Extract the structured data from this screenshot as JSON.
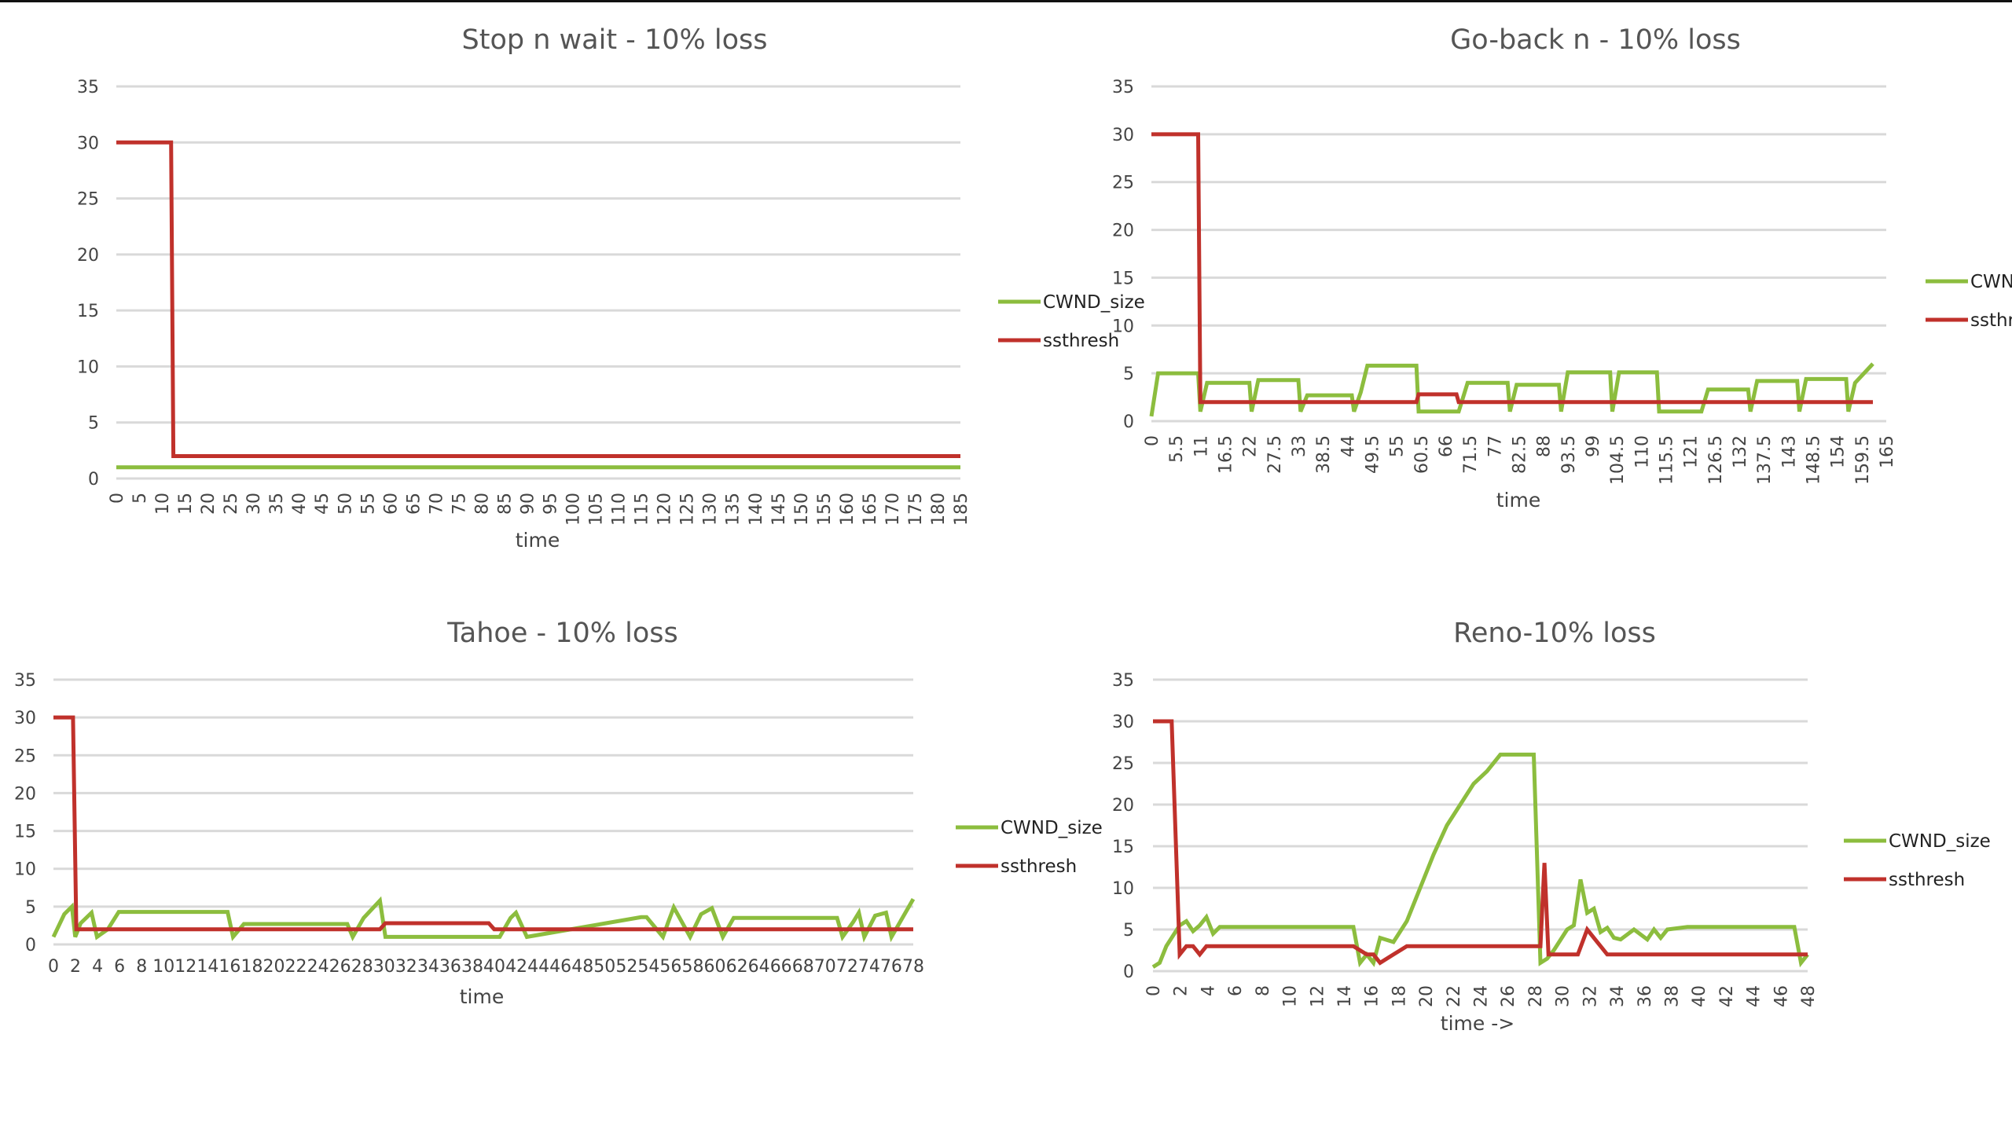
{
  "colors": {
    "cwnd": "#8cbd3e",
    "ssthresh": "#c0312b",
    "grid": "#d9d9d9",
    "text": "#444444"
  },
  "chart_data": [
    {
      "type": "line",
      "title": "Stop n wait - 10% loss",
      "xlabel": "time",
      "ylabel": "",
      "ylim": [
        0,
        35
      ],
      "yticks": [
        0,
        5,
        10,
        15,
        20,
        25,
        30,
        35
      ],
      "xlim": [
        0,
        185
      ],
      "xticks": [
        "0",
        "5",
        "10",
        "15",
        "20",
        "25",
        "30",
        "35",
        "40",
        "45",
        "50",
        "55",
        "60",
        "65",
        "70",
        "75",
        "80",
        "85",
        "90",
        "95",
        "100",
        "105",
        "110",
        "115",
        "120",
        "125",
        "130",
        "135",
        "140",
        "145",
        "150",
        "155",
        "160",
        "165",
        "170",
        "175",
        "180",
        "185"
      ],
      "grid": "horizontal",
      "legend": "right",
      "series": [
        {
          "name": "CWND_size",
          "x": [
            0,
            185
          ],
          "values": [
            1,
            1
          ]
        },
        {
          "name": "ssthresh",
          "x": [
            0,
            12,
            12.5,
            185
          ],
          "values": [
            30,
            30,
            2,
            2
          ]
        }
      ]
    },
    {
      "type": "line",
      "title": "Go-back n - 10% loss",
      "xlabel": "time",
      "ylabel": "",
      "ylim": [
        0,
        35
      ],
      "yticks": [
        0,
        5,
        10,
        15,
        20,
        25,
        30,
        35
      ],
      "xlim": [
        0,
        165
      ],
      "xticks": [
        "0",
        "5.5",
        "11",
        "16.5",
        "22",
        "27.5",
        "33",
        "38.5",
        "44",
        "49.5",
        "55",
        "60.5",
        "66",
        "71.5",
        "77",
        "82.5",
        "88",
        "93.5",
        "99",
        "104.5",
        "110",
        "115.5",
        "121",
        "126.5",
        "132",
        "137.5",
        "143",
        "148.5",
        "154",
        "159.5",
        "165"
      ],
      "grid": "horizontal",
      "legend": "right",
      "series": [
        {
          "name": "CWND_size",
          "x": [
            0,
            1.5,
            10.5,
            11,
            12.5,
            22,
            22.5,
            24,
            33,
            33.5,
            35,
            45,
            45.5,
            47,
            48.5,
            50,
            59.5,
            60,
            68.5,
            69,
            71,
            80,
            80.5,
            82,
            91.5,
            92,
            93.5,
            103,
            103.5,
            105,
            113.5,
            114,
            123,
            123.5,
            125,
            134,
            134.5,
            136,
            145,
            145.5,
            147,
            156,
            156.5,
            158,
            162
          ],
          "values": [
            0.5,
            5,
            5,
            1,
            4,
            4,
            1,
            4.3,
            4.3,
            1,
            2.7,
            2.7,
            1,
            3,
            5.8,
            5.8,
            5.8,
            1,
            1,
            1,
            4,
            4,
            1,
            3.8,
            3.8,
            1,
            5.1,
            5.1,
            1,
            5.1,
            5.1,
            1,
            1,
            1,
            3.3,
            3.3,
            1,
            4.2,
            4.2,
            1,
            4.4,
            4.4,
            1,
            4,
            6
          ]
        },
        {
          "name": "ssthresh",
          "x": [
            0,
            10.5,
            11,
            59.5,
            60,
            68.5,
            69,
            162
          ],
          "values": [
            30,
            30,
            2,
            2,
            2.8,
            2.8,
            2,
            2
          ]
        }
      ]
    },
    {
      "type": "line",
      "title": "Tahoe - 10% loss",
      "xlabel": "time",
      "ylabel": "",
      "ylim": [
        0,
        35
      ],
      "yticks": [
        0,
        5,
        10,
        15,
        20,
        25,
        30,
        35
      ],
      "xlim": [
        0,
        79
      ],
      "xticks": [
        "0",
        "2",
        "4",
        "6",
        "8",
        "10",
        "12",
        "14",
        "16",
        "18",
        "20",
        "22",
        "24",
        "26",
        "28",
        "30",
        "32",
        "34",
        "36",
        "38",
        "40",
        "42",
        "44",
        "46",
        "48",
        "50",
        "52",
        "54",
        "56",
        "58",
        "60",
        "62",
        "64",
        "66",
        "68",
        "70",
        "72",
        "74",
        "76",
        "78"
      ],
      "grid": "horizontal",
      "legend": "right",
      "series": [
        {
          "name": "CWND_size",
          "x": [
            0,
            1,
            1.7,
            2,
            2.5,
            3.5,
            4,
            5,
            6,
            16,
            16.5,
            17.5,
            27,
            27.5,
            28.5,
            30,
            30.5,
            41,
            42,
            42.5,
            43.5,
            54,
            54.5,
            56,
            56.5,
            57,
            58.5,
            59.5,
            60.5,
            61.5,
            62.5,
            72,
            72.5,
            73.5,
            74,
            74.5,
            75.5,
            76.5,
            77,
            78,
            79
          ],
          "values": [
            1,
            4,
            5,
            1,
            2.8,
            4.2,
            1,
            2,
            4.3,
            4.3,
            1,
            2.7,
            2.7,
            1,
            3.5,
            5.8,
            1,
            1,
            3.5,
            4.2,
            1,
            3.6,
            3.6,
            1,
            3,
            4.9,
            1,
            4,
            4.8,
            1,
            3.5,
            3.5,
            1,
            3,
            4.2,
            1,
            3.8,
            4.2,
            1,
            3.5,
            6
          ]
        },
        {
          "name": "ssthresh",
          "x": [
            0,
            1.8,
            2.1,
            30,
            30.5,
            40,
            40.5,
            79
          ],
          "values": [
            30,
            30,
            2,
            2,
            2.8,
            2.8,
            2,
            2
          ]
        }
      ]
    },
    {
      "type": "line",
      "title": "Reno-10% loss",
      "xlabel": "time ->",
      "ylabel": "",
      "ylim": [
        0,
        35
      ],
      "yticks": [
        0,
        5,
        10,
        15,
        20,
        25,
        30,
        35
      ],
      "xlim": [
        0,
        49
      ],
      "xticks": [
        "0",
        "2",
        "4",
        "6",
        "8",
        "10",
        "12",
        "14",
        "16",
        "18",
        "20",
        "22",
        "24",
        "26",
        "28",
        "30",
        "32",
        "34",
        "36",
        "38",
        "40",
        "42",
        "44",
        "46",
        "48"
      ],
      "grid": "horizontal",
      "legend": "right",
      "series": [
        {
          "name": "CWND_size",
          "x": [
            0,
            0.5,
            1,
            2,
            2.5,
            3,
            3.5,
            4,
            4.5,
            5,
            15,
            15.5,
            16,
            16.5,
            17,
            18,
            19,
            20,
            21,
            22,
            23,
            24,
            25,
            26,
            28,
            28.5,
            29,
            29.5,
            30,
            31,
            31.5,
            32,
            32.5,
            33,
            33.5,
            34,
            34.5,
            35,
            36,
            37,
            37.5,
            38,
            38.5,
            40,
            48,
            48.5,
            49
          ],
          "values": [
            0.5,
            1,
            3,
            5.5,
            6,
            4.8,
            5.5,
            6.5,
            4.5,
            5.3,
            5.3,
            1,
            2,
            1,
            4,
            3.5,
            6,
            10,
            14,
            17.5,
            20,
            22.5,
            24,
            26,
            26,
            26,
            1,
            1.5,
            2.5,
            5,
            5.5,
            11,
            7,
            7.5,
            4.7,
            5.2,
            4,
            3.8,
            5,
            3.8,
            5,
            4,
            5,
            5.3,
            5.3,
            1,
            2
          ]
        },
        {
          "name": "ssthresh",
          "x": [
            0,
            1.4,
            2,
            2.5,
            3,
            3.5,
            4,
            15,
            16,
            16.5,
            17,
            18,
            19,
            29,
            29.3,
            29.6,
            31,
            31.8,
            32.5,
            33.5,
            34,
            49
          ],
          "values": [
            30,
            30,
            2,
            3,
            3,
            2,
            3,
            3,
            2,
            2,
            1,
            2,
            3,
            3,
            13,
            2,
            2,
            2,
            5,
            3,
            2,
            2
          ]
        }
      ]
    }
  ]
}
